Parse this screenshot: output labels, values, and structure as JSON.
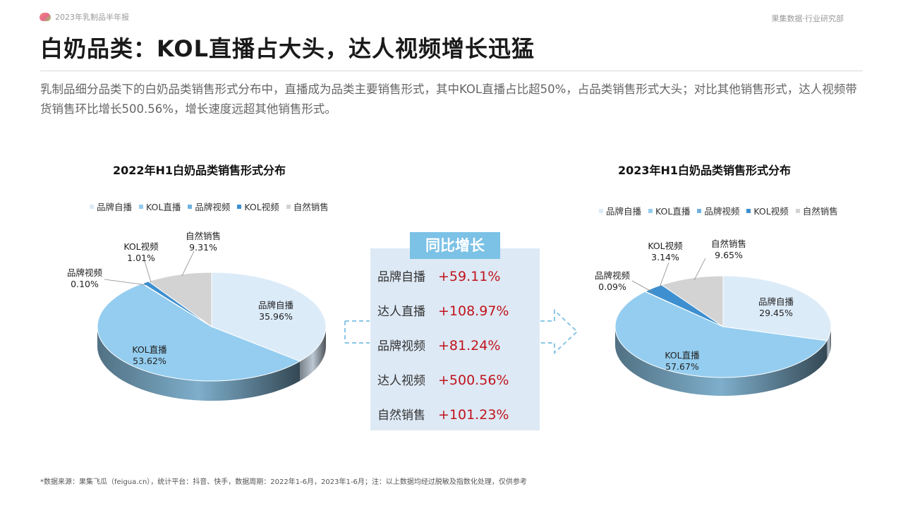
{
  "header": {
    "report_name": "2023年乳制品半年报",
    "source_dept": "果集数据·行业研究部"
  },
  "title": "白奶品类：KOL直播占大头，达人视频增长迅猛",
  "description": "乳制品细分品类下的白奶品类销售形式分布中，直播成为品类主要销售形式，其中KOL直播占比超50%，占品类销售形式大头；对比其他销售形式，达人视频带货销售环比增长500.56%，增长速度远超其他销售形式。",
  "colors": {
    "品牌自播": "#dcebf8",
    "KOL直播": "#94cdef",
    "品牌视频": "#6fb2e2",
    "KOL视频": "#3d8fd0",
    "自然销售": "#d3d3d3",
    "growth_text": "#c0141c",
    "panel_header": "#7cc1e6"
  },
  "chart_data": [
    {
      "type": "pie",
      "title": "2022年H1白奶品类销售形式分布",
      "legend": [
        "品牌自播",
        "KOL直播",
        "品牌视频",
        "KOL视频",
        "自然销售"
      ],
      "slices": [
        {
          "name": "品牌自播",
          "value": 35.96,
          "label": "35.96%"
        },
        {
          "name": "KOL直播",
          "value": 53.62,
          "label": "53.62%"
        },
        {
          "name": "品牌视频",
          "value": 0.1,
          "label": "0.10%"
        },
        {
          "name": "KOL视频",
          "value": 1.01,
          "label": "1.01%"
        },
        {
          "name": "自然销售",
          "value": 9.31,
          "label": "9.31%"
        }
      ]
    },
    {
      "type": "pie",
      "title": "2023年H1白奶品类销售形式分布",
      "legend": [
        "品牌自播",
        "KOL直播",
        "品牌视频",
        "KOL视频",
        "自然销售"
      ],
      "slices": [
        {
          "name": "品牌自播",
          "value": 29.45,
          "label": "29.45%"
        },
        {
          "name": "KOL直播",
          "value": 57.67,
          "label": "57.67%"
        },
        {
          "name": "品牌视频",
          "value": 0.09,
          "label": "0.09%"
        },
        {
          "name": "KOL视频",
          "value": 3.14,
          "label": "3.14%"
        },
        {
          "name": "自然销售",
          "value": 9.65,
          "label": "9.65%"
        }
      ]
    }
  ],
  "yoy": {
    "header": "同比增长",
    "rows": [
      {
        "label": "品牌自播",
        "value": "+59.11%"
      },
      {
        "label": "达人直播",
        "value": "+108.97%"
      },
      {
        "label": "品牌视频",
        "value": "+81.24%"
      },
      {
        "label": "达人视频",
        "value": "+500.56%"
      },
      {
        "label": "自然销售",
        "value": "+101.23%"
      }
    ]
  },
  "footnote": "*数据来源：果集飞瓜（feigua.cn），统计平台：抖音、快手，数据周期：2022年1-6月，2023年1-6月；注：以上数据均经过脱敏及指数化处理，仅供参考"
}
